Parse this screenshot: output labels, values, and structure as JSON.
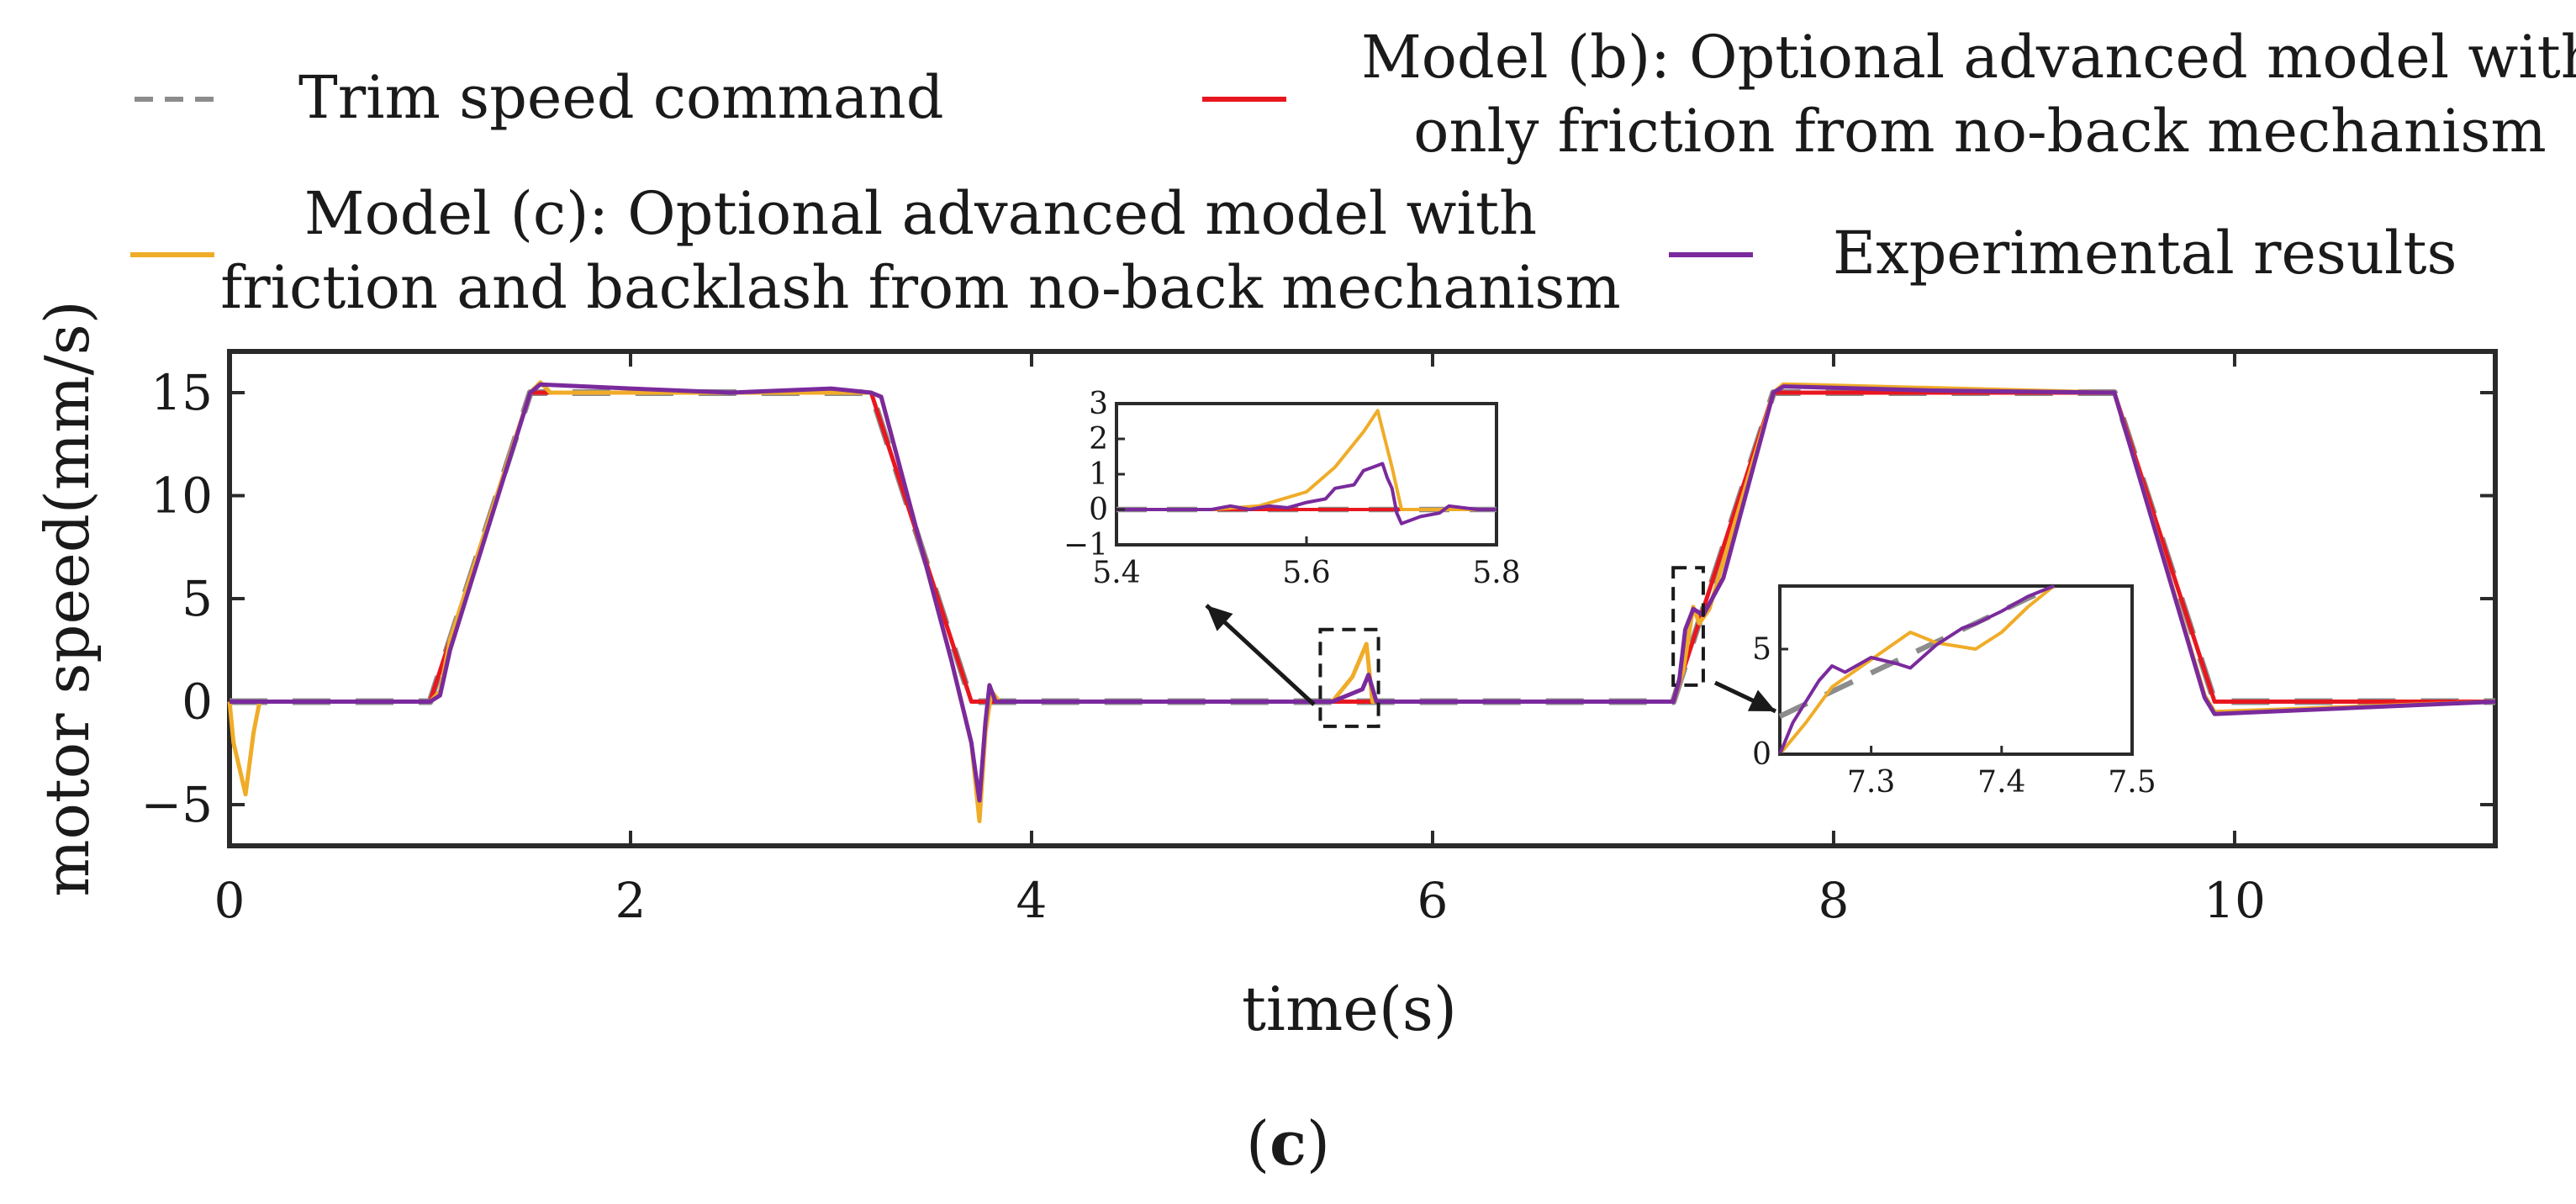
{
  "legend": [
    {
      "key": "cmd",
      "label_lines": [
        "Trim speed command"
      ],
      "color": "#8c8c8c",
      "dash": true
    },
    {
      "key": "b",
      "label_lines": [
        "Model (b): Optional advanced model with",
        "only friction from no-back mechanism"
      ],
      "color": "#e8171f",
      "dash": false
    },
    {
      "key": "c",
      "label_lines": [
        "Model (c): Optional advanced model with",
        "friction and backlash from no-back mechanism"
      ],
      "color": "#f0ac28",
      "dash": false
    },
    {
      "key": "exp",
      "label_lines": [
        "Experimental results"
      ],
      "color": "#7a2a9c",
      "dash": false
    }
  ],
  "caption": {
    "open": "(",
    "letter": "c",
    "close": ")"
  },
  "chart_data": {
    "type": "line",
    "xlabel": "time(s)",
    "ylabel": "motor speed(mm/s)",
    "xlim": [
      0,
      11.3
    ],
    "ylim": [
      -7,
      17
    ],
    "xticks": [
      0,
      2,
      4,
      6,
      8,
      10
    ],
    "yticks": [
      -5,
      0,
      5,
      10,
      15
    ],
    "ytick_labels": [
      "−5",
      "0",
      "5",
      "10",
      "15"
    ],
    "series": [
      {
        "name": "Trim speed command",
        "color": "#8c8c8c",
        "dashed": true,
        "x": [
          0,
          1.0,
          1.5,
          3.2,
          3.7,
          7.2,
          7.7,
          9.4,
          9.9,
          11.3
        ],
        "y": [
          0,
          0,
          15,
          15,
          0,
          0,
          15,
          15,
          0,
          0
        ]
      },
      {
        "name": "Model (b)",
        "color": "#e8171f",
        "dashed": false,
        "x": [
          0,
          1.0,
          1.5,
          3.2,
          3.7,
          5.5,
          5.7,
          7.2,
          7.7,
          9.4,
          9.9,
          11.3
        ],
        "y": [
          0,
          0,
          15,
          15,
          0,
          0,
          0,
          0,
          15,
          15,
          0,
          0
        ]
      },
      {
        "name": "Model (c)",
        "color": "#f0ac28",
        "dashed": false,
        "x": [
          0,
          0.02,
          0.08,
          0.12,
          0.15,
          1.0,
          1.05,
          1.1,
          1.5,
          1.55,
          1.6,
          3.2,
          3.25,
          3.6,
          3.7,
          3.74,
          3.77,
          3.8,
          3.84,
          4.0,
          5.5,
          5.6,
          5.67,
          5.7,
          5.8,
          7.2,
          7.25,
          7.3,
          7.33,
          7.38,
          7.7,
          7.75,
          9.4,
          9.85,
          9.9,
          11.3
        ],
        "y": [
          0,
          -2,
          -4.5,
          -1.5,
          0,
          0,
          0.5,
          3,
          15,
          15.5,
          15,
          15,
          14.8,
          2,
          -2,
          -5.8,
          -1.5,
          0.5,
          0,
          0,
          0,
          1.2,
          2.8,
          0,
          0,
          0,
          1.5,
          4.6,
          3.8,
          4.5,
          15,
          15.4,
          15,
          0.3,
          -0.5,
          0
        ]
      },
      {
        "name": "Experimental results",
        "color": "#7a2a9c",
        "dashed": false,
        "x": [
          0,
          1.0,
          1.05,
          1.1,
          1.5,
          1.55,
          2.0,
          2.5,
          3.0,
          3.2,
          3.25,
          3.6,
          3.7,
          3.74,
          3.77,
          3.79,
          3.82,
          4.0,
          5.5,
          5.6,
          5.65,
          5.68,
          5.72,
          5.8,
          7.2,
          7.23,
          7.26,
          7.3,
          7.35,
          7.45,
          7.7,
          7.75,
          8.5,
          9.4,
          9.85,
          9.9,
          11.3
        ],
        "y": [
          0,
          0,
          0.3,
          2.5,
          15,
          15.4,
          15.2,
          15,
          15.2,
          15,
          14.8,
          2,
          -2,
          -4.8,
          -1,
          0.8,
          0,
          0,
          0,
          0.4,
          0.6,
          1.3,
          0,
          0,
          0,
          1,
          3.5,
          4.5,
          4.2,
          6,
          15,
          15.3,
          15.1,
          15,
          0.2,
          -0.6,
          0
        ]
      }
    ],
    "insets": [
      {
        "xlim": [
          5.4,
          5.8
        ],
        "ylim": [
          -1,
          3
        ],
        "xticks": [
          5.4,
          5.6,
          5.8
        ],
        "yticks": [
          -1,
          0,
          1,
          2,
          3
        ],
        "ytick_labels": [
          "−1",
          "0",
          "1",
          "2",
          "3"
        ],
        "zoom_x": [
          5.44,
          5.73
        ],
        "zoom_y": [
          -1.2,
          3.5
        ],
        "series": [
          {
            "name": "Trim speed command",
            "color": "#8c8c8c",
            "dashed": true,
            "x": [
              5.4,
              5.8
            ],
            "y": [
              0,
              0
            ]
          },
          {
            "name": "Model (b)",
            "color": "#e8171f",
            "dashed": false,
            "x": [
              5.4,
              5.8
            ],
            "y": [
              0,
              0
            ]
          },
          {
            "name": "Model (c)",
            "color": "#f0ac28",
            "dashed": false,
            "x": [
              5.4,
              5.5,
              5.55,
              5.6,
              5.63,
              5.66,
              5.675,
              5.69,
              5.7,
              5.8
            ],
            "y": [
              0,
              0,
              0.1,
              0.5,
              1.2,
              2.2,
              2.8,
              1.2,
              0,
              0
            ]
          },
          {
            "name": "Experimental results",
            "color": "#7a2a9c",
            "dashed": false,
            "x": [
              5.4,
              5.5,
              5.52,
              5.54,
              5.56,
              5.58,
              5.6,
              5.62,
              5.63,
              5.65,
              5.66,
              5.67,
              5.68,
              5.685,
              5.69,
              5.695,
              5.7,
              5.72,
              5.74,
              5.75,
              5.78,
              5.8
            ],
            "y": [
              0,
              0,
              0.1,
              0,
              0.1,
              0.05,
              0.2,
              0.3,
              0.6,
              0.7,
              1.1,
              1.2,
              1.3,
              0.9,
              0.6,
              -0.1,
              -0.4,
              -0.2,
              -0.1,
              0.1,
              0,
              0
            ]
          }
        ]
      },
      {
        "xlim": [
          7.23,
          7.5
        ],
        "ylim": [
          0,
          8
        ],
        "xticks": [
          7.3,
          7.4,
          7.5
        ],
        "yticks": [
          0,
          5
        ],
        "ytick_labels": [
          "0",
          "5"
        ],
        "zoom_x": [
          7.2,
          7.35
        ],
        "zoom_y": [
          0.8,
          6.5
        ],
        "series": [
          {
            "name": "Trim speed command",
            "color": "#8c8c8c",
            "dashed": true,
            "x": [
              7.23,
              7.44
            ],
            "y": [
              1.8,
              8
            ]
          },
          {
            "name": "Model (c)",
            "color": "#f0ac28",
            "dashed": false,
            "x": [
              7.23,
              7.25,
              7.27,
              7.3,
              7.33,
              7.35,
              7.38,
              7.4,
              7.42,
              7.44
            ],
            "y": [
              0,
              1.5,
              3.2,
              4.5,
              5.8,
              5.3,
              5.0,
              5.8,
              7.0,
              8.0
            ]
          },
          {
            "name": "Experimental results",
            "color": "#7a2a9c",
            "dashed": false,
            "x": [
              7.23,
              7.24,
              7.25,
              7.26,
              7.27,
              7.28,
              7.3,
              7.32,
              7.33,
              7.35,
              7.37,
              7.38,
              7.4,
              7.42,
              7.44
            ],
            "y": [
              0,
              1.5,
              2.5,
              3.5,
              4.2,
              3.9,
              4.6,
              4.3,
              4.1,
              5.2,
              6.0,
              6.2,
              6.8,
              7.5,
              8.0
            ]
          }
        ]
      }
    ]
  }
}
